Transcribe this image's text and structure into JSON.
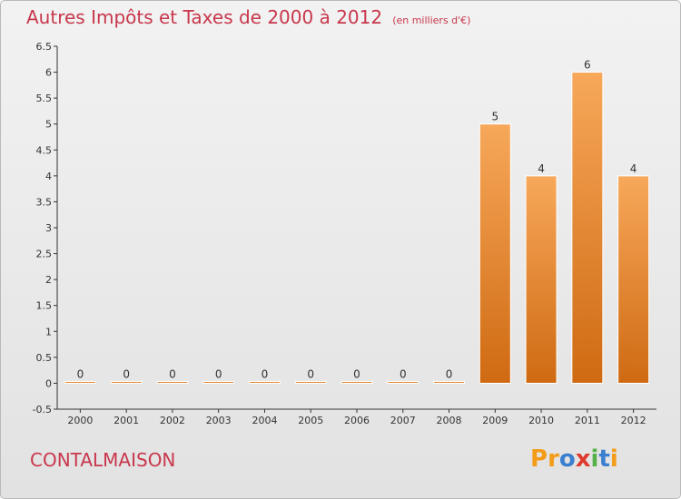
{
  "title": "Autres Impôts et Taxes de 2000 à 2012",
  "unit_label": "(en milliers d'€)",
  "commune": "CONTALMAISON",
  "logo": {
    "text": "Proxiti",
    "letters": [
      "P",
      "r",
      "o",
      "x",
      "i",
      "t",
      "i"
    ],
    "colors": [
      "#f39c1a",
      "#f39c1a",
      "#3a7fd0",
      "#e03a2f",
      "#56b04a",
      "#3a7fd0",
      "#f39c1a"
    ]
  },
  "colors": {
    "title": "#c8374c",
    "bar_light": "#f7a85a",
    "bar_dark": "#cf6a12",
    "axis": "#333333",
    "grid": "#cccccc"
  },
  "chart_data": {
    "type": "bar",
    "categories": [
      "2000",
      "2001",
      "2002",
      "2003",
      "2004",
      "2005",
      "2006",
      "2007",
      "2008",
      "2009",
      "2010",
      "2011",
      "2012"
    ],
    "values": [
      0,
      0,
      0,
      0,
      0,
      0,
      0,
      0,
      0,
      5,
      4,
      6,
      4
    ],
    "value_labels": [
      "0",
      "0",
      "0",
      "0",
      "0",
      "0",
      "0",
      "0",
      "0",
      "5",
      "4",
      "6",
      "4"
    ],
    "y_ticks": [
      -0.5,
      0,
      0.5,
      1,
      1.5,
      2,
      2.5,
      3,
      3.5,
      4,
      4.5,
      5,
      5.5,
      6,
      6.5
    ],
    "y_tick_labels": [
      "-0.5",
      "0",
      "0.5",
      "1",
      "1.5",
      "2",
      "2.5",
      "3",
      "3.5",
      "4",
      "4.5",
      "5",
      "5.5",
      "6",
      "6.5"
    ],
    "ylim": [
      -0.5,
      6.5
    ],
    "xlabel": "",
    "ylabel": "",
    "grid": false
  }
}
